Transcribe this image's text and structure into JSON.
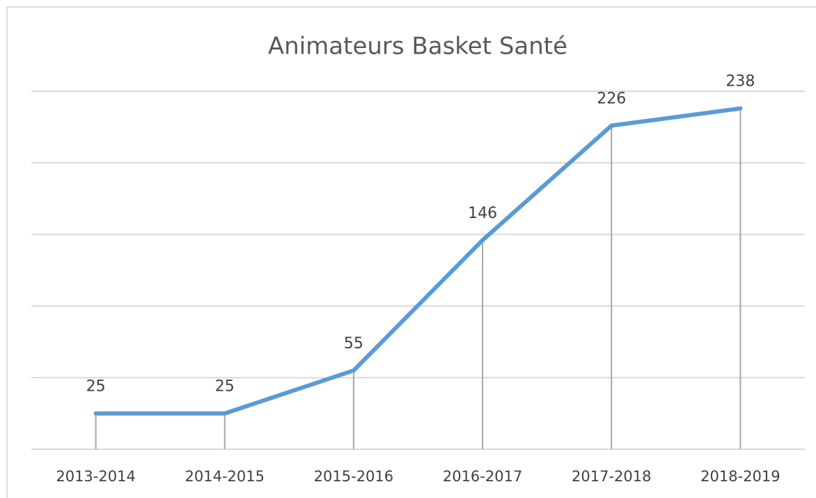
{
  "chart_data": {
    "type": "line",
    "title": "Animateurs Basket Santé",
    "categories": [
      "2013-2014",
      "2014-2015",
      "2015-2016",
      "2016-2017",
      "2017-2018",
      "2018-2019"
    ],
    "values": [
      25,
      25,
      55,
      146,
      226,
      238
    ],
    "color": "#5b9bd5",
    "ylim": [
      0,
      250
    ],
    "yticks": [
      0,
      50,
      100,
      150,
      200,
      250
    ],
    "grid": true,
    "drop_lines": true
  }
}
